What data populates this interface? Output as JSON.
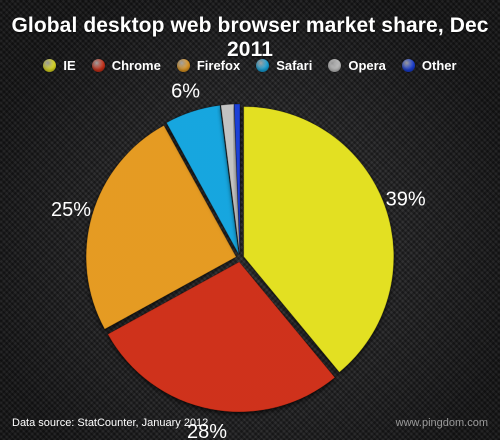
{
  "chart_data": {
    "type": "pie",
    "title": "Global desktop web browser market share, Dec 2011",
    "categories": [
      "IE",
      "Chrome",
      "Firefox",
      "Safari",
      "Opera",
      "Other"
    ],
    "values": [
      39,
      28,
      25,
      6,
      1.4,
      0.6
    ],
    "data_labels": [
      "39%",
      "28%",
      "25%",
      "6%",
      "",
      ""
    ],
    "colors": [
      "#e3e023",
      "#cf321a",
      "#e59b24",
      "#18a6df",
      "#c2c2c2",
      "#1a3fd8"
    ],
    "legend_position": "top",
    "start_angle": "12 o'clock, clockwise",
    "exploded": true
  },
  "footer": {
    "source": "Data source: StatCounter, January 2012",
    "credit": "www.pingdom.com"
  }
}
